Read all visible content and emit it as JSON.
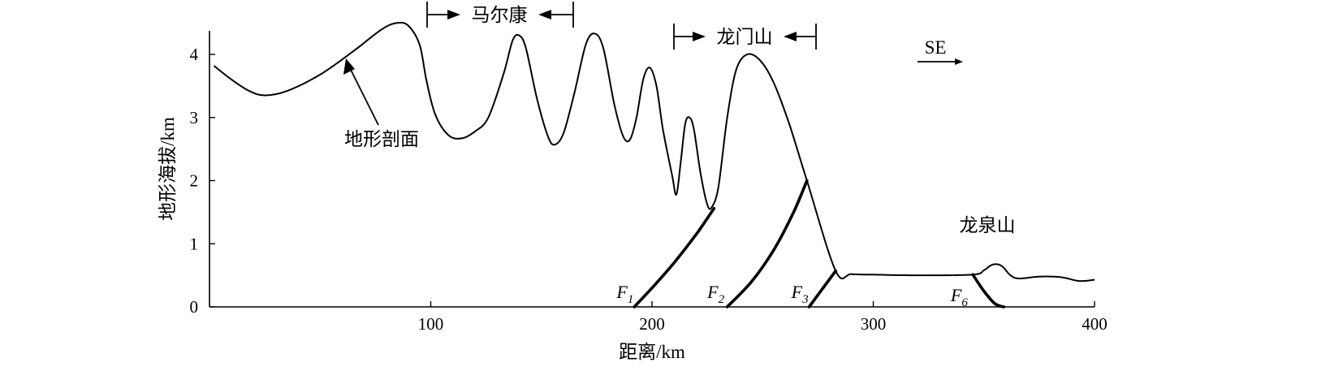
{
  "chart_data": {
    "type": "line",
    "xlabel": "距离/km",
    "ylabel": "地形海拔/km",
    "xlim": [
      0,
      400
    ],
    "ylim": [
      0,
      4.5
    ],
    "x_ticks": [
      100,
      200,
      300,
      400
    ],
    "y_ticks": [
      0,
      1,
      2,
      3,
      4
    ],
    "series": [
      {
        "values": [
          [
            2,
            3.82
          ],
          [
            10,
            3.6
          ],
          [
            18,
            3.42
          ],
          [
            25,
            3.35
          ],
          [
            35,
            3.42
          ],
          [
            50,
            3.68
          ],
          [
            65,
            4.05
          ],
          [
            78,
            4.4
          ],
          [
            85,
            4.5
          ],
          [
            90,
            4.45
          ],
          [
            95,
            4.15
          ],
          [
            98,
            3.6
          ],
          [
            102,
            3.05
          ],
          [
            108,
            2.72
          ],
          [
            114,
            2.67
          ],
          [
            120,
            2.78
          ],
          [
            126,
            3.0
          ],
          [
            133,
            3.7
          ],
          [
            137,
            4.22
          ],
          [
            140,
            4.3
          ],
          [
            143,
            4.1
          ],
          [
            148,
            3.3
          ],
          [
            153,
            2.7
          ],
          [
            156,
            2.57
          ],
          [
            160,
            2.75
          ],
          [
            165,
            3.4
          ],
          [
            170,
            4.15
          ],
          [
            174,
            4.33
          ],
          [
            178,
            4.1
          ],
          [
            183,
            3.2
          ],
          [
            187,
            2.7
          ],
          [
            190,
            2.65
          ],
          [
            193,
            3.0
          ],
          [
            196,
            3.6
          ],
          [
            199,
            3.79
          ],
          [
            202,
            3.5
          ],
          [
            205,
            2.8
          ],
          [
            209,
            2.1
          ],
          [
            211,
            1.78
          ],
          [
            213,
            2.3
          ],
          [
            215,
            2.9
          ],
          [
            217,
            3.0
          ],
          [
            219,
            2.8
          ],
          [
            222,
            2.1
          ],
          [
            225,
            1.62
          ],
          [
            227,
            1.58
          ],
          [
            230,
            1.9
          ],
          [
            234,
            3.0
          ],
          [
            238,
            3.75
          ],
          [
            243,
            4.0
          ],
          [
            249,
            3.9
          ],
          [
            255,
            3.55
          ],
          [
            262,
            2.9
          ],
          [
            270,
            2.0
          ],
          [
            283,
            0.57
          ],
          [
            290,
            0.52
          ],
          [
            300,
            0.51
          ],
          [
            320,
            0.5
          ],
          [
            345,
            0.51
          ],
          [
            350,
            0.58
          ],
          [
            354,
            0.67
          ],
          [
            358,
            0.65
          ],
          [
            362,
            0.5
          ],
          [
            366,
            0.45
          ],
          [
            375,
            0.48
          ],
          [
            385,
            0.47
          ],
          [
            393,
            0.41
          ],
          [
            400,
            0.43
          ]
        ]
      }
    ],
    "faults": [
      {
        "label": "F",
        "sub": "1",
        "points": [
          [
            192,
            0
          ],
          [
            200,
            0.3
          ],
          [
            210,
            0.7
          ],
          [
            220,
            1.15
          ],
          [
            228,
            1.56
          ]
        ]
      },
      {
        "label": "F",
        "sub": "2",
        "points": [
          [
            234,
            0
          ],
          [
            245,
            0.4
          ],
          [
            255,
            0.9
          ],
          [
            264,
            1.5
          ],
          [
            270,
            2.0
          ]
        ]
      },
      {
        "label": "F",
        "sub": "3",
        "points": [
          [
            271,
            0
          ],
          [
            283,
            0.57
          ]
        ]
      },
      {
        "label": "F",
        "sub": "6",
        "points": [
          [
            345,
            0.51
          ],
          [
            350,
            0.25
          ],
          [
            355,
            0.05
          ],
          [
            359,
            0
          ]
        ]
      }
    ],
    "annotations": {
      "profile_label": "地形剖面",
      "range1": "马尔康",
      "range2": "龙门山",
      "range3": "龙泉山",
      "direction": "SE"
    }
  }
}
